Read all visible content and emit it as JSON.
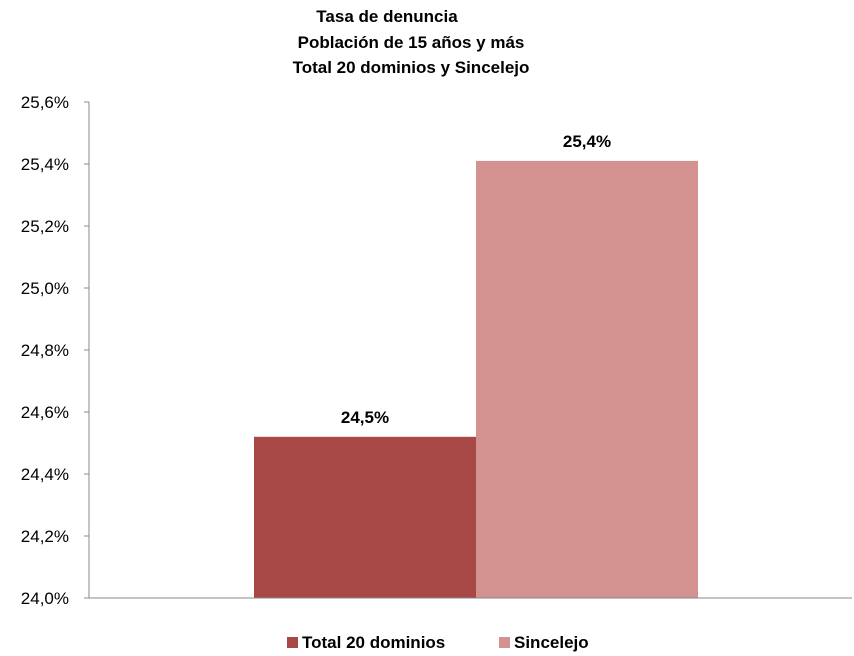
{
  "chart_data": {
    "type": "bar",
    "title_lines": [
      "Tasa de denuncia",
      "Población de 15 años y más",
      "Total 20 dominios y Sincelejo"
    ],
    "xlabel": "",
    "ylabel": "",
    "ylim": [
      24.0,
      25.6
    ],
    "y_ticks": [
      "25,6%",
      "25,4%",
      "25,2%",
      "25,0%",
      "24,8%",
      "24,6%",
      "24,4%",
      "24,2%",
      "24,0%"
    ],
    "series": [
      {
        "name": "Total 20 dominios",
        "values": [
          24.52
        ],
        "label": "24,5%",
        "color": "#A84846"
      },
      {
        "name": "Sincelejo",
        "values": [
          25.41
        ],
        "label": "25,4%",
        "color": "#D39190"
      }
    ],
    "grid": false,
    "legend_position": "bottom"
  }
}
